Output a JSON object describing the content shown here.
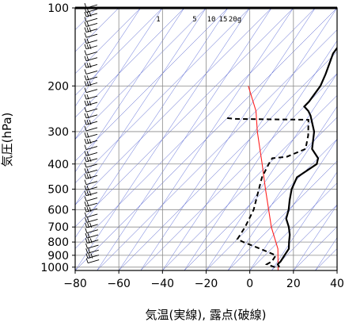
{
  "chart_data": {
    "type": "skew-t",
    "xlabel": "気温(実線), 露点(破線)",
    "ylabel": "気圧(hPa)",
    "xlim": [
      -80,
      40
    ],
    "ylim": [
      1030,
      100
    ],
    "y_scale": "log",
    "x_ticks": [
      "−80",
      "−60",
      "−40",
      "−20",
      "0",
      "20",
      "40"
    ],
    "x_tick_values": [
      -80,
      -60,
      -40,
      -20,
      0,
      20,
      40
    ],
    "y_ticks": [
      "100",
      "200",
      "300",
      "400",
      "500",
      "600",
      "700",
      "800",
      "900",
      "1000"
    ],
    "y_tick_values": [
      100,
      200,
      300,
      400,
      500,
      600,
      700,
      800,
      900,
      1000
    ],
    "mixing_ratio_labels": [
      "1",
      "5",
      "10",
      "15",
      "20g"
    ],
    "temperature": [
      {
        "p": 1000,
        "t": 12
      },
      {
        "p": 975,
        "t": 10
      },
      {
        "p": 950,
        "t": 10
      },
      {
        "p": 900,
        "t": 9
      },
      {
        "p": 850,
        "t": 8
      },
      {
        "p": 800,
        "t": 5
      },
      {
        "p": 750,
        "t": 2
      },
      {
        "p": 700,
        "t": -2
      },
      {
        "p": 650,
        "t": -7
      },
      {
        "p": 600,
        "t": -10
      },
      {
        "p": 550,
        "t": -14
      },
      {
        "p": 500,
        "t": -18
      },
      {
        "p": 450,
        "t": -21
      },
      {
        "p": 400,
        "t": -18
      },
      {
        "p": 380,
        "t": -20
      },
      {
        "p": 350,
        "t": -27
      },
      {
        "p": 300,
        "t": -34
      },
      {
        "p": 260,
        "t": -43
      },
      {
        "p": 250,
        "t": -46
      },
      {
        "p": 240,
        "t": -50
      },
      {
        "p": 230,
        "t": -50
      },
      {
        "p": 200,
        "t": -52
      },
      {
        "p": 180,
        "t": -55
      },
      {
        "p": 150,
        "t": -61
      },
      {
        "p": 130,
        "t": -63
      },
      {
        "p": 120,
        "t": -65
      },
      {
        "p": 110,
        "t": -70
      },
      {
        "p": 105,
        "t": -70
      },
      {
        "p": 100,
        "t": -68
      }
    ],
    "dewpoint": [
      {
        "p": 1000,
        "t": 10
      },
      {
        "p": 975,
        "t": 5
      },
      {
        "p": 950,
        "t": 6
      },
      {
        "p": 900,
        "t": 5
      },
      {
        "p": 850,
        "t": -5
      },
      {
        "p": 800,
        "t": -16
      },
      {
        "p": 780,
        "t": -20
      },
      {
        "p": 700,
        "t": -22
      },
      {
        "p": 600,
        "t": -26
      },
      {
        "p": 500,
        "t": -33
      },
      {
        "p": 450,
        "t": -37
      },
      {
        "p": 400,
        "t": -40
      },
      {
        "p": 380,
        "t": -41
      },
      {
        "p": 375,
        "t": -35
      },
      {
        "p": 350,
        "t": -30
      },
      {
        "p": 310,
        "t": -35
      },
      {
        "p": 270,
        "t": -42
      },
      {
        "p": 268,
        "t": -76
      },
      {
        "p": 266,
        "t": -80
      }
    ],
    "parcel_path": [
      {
        "p": 1030,
        "t": 13
      },
      {
        "p": 850,
        "t": 3
      },
      {
        "p": 700,
        "t": -10
      },
      {
        "p": 500,
        "t": -30
      },
      {
        "p": 400,
        "t": -43
      },
      {
        "p": 300,
        "t": -60
      },
      {
        "p": 250,
        "t": -70
      },
      {
        "p": 200,
        "t": -85
      }
    ]
  }
}
